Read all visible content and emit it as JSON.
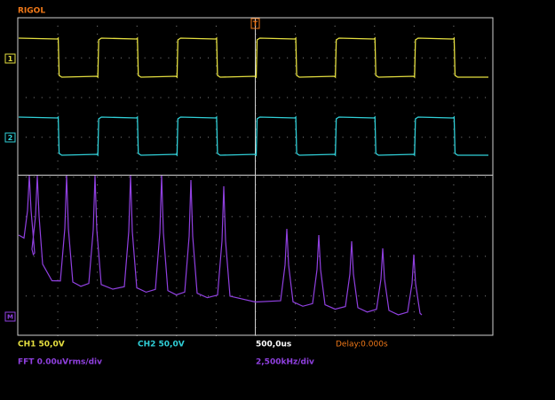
{
  "header": {
    "brand": "RIGOL"
  },
  "channels": [
    {
      "marker": "1",
      "scale": "CH1 50,0V"
    },
    {
      "marker": "2",
      "scale": "CH2 50,0V"
    }
  ],
  "math": {
    "marker": "M",
    "scale": "FFT 0.00uVrms/div",
    "frequency_scale": "2,500kHz/div"
  },
  "timebase": {
    "trigger_marker": "T",
    "scale": "500,0us",
    "delay": "Delay:0.000s"
  }
}
